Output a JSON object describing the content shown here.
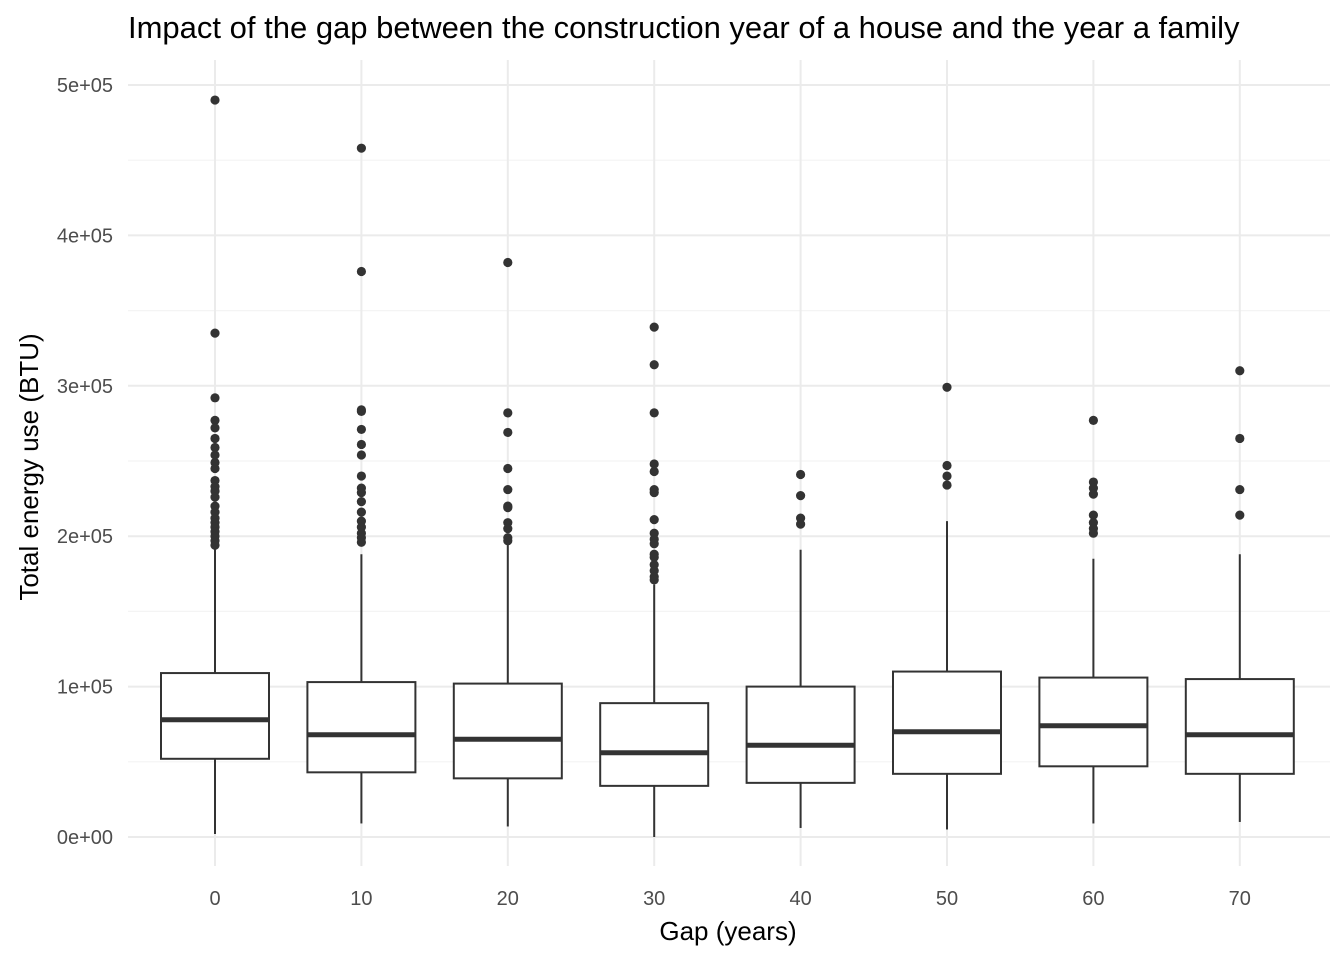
{
  "chart_data": {
    "type": "boxplot",
    "title": "Impact of the gap between the construction year of a house and the year a family",
    "xlabel": "Gap (years)",
    "ylabel": "Total energy use (BTU)",
    "ylim": [
      -50000,
      510000
    ],
    "yticks": [
      0,
      100000,
      200000,
      300000,
      400000,
      500000
    ],
    "ytick_labels": [
      "0e+00",
      "1e+05",
      "2e+05",
      "3e+05",
      "4e+05",
      "5e+05"
    ],
    "categories": [
      "0",
      "10",
      "20",
      "30",
      "40",
      "50",
      "60",
      "70"
    ],
    "grid": true,
    "colors": {
      "box": "#333333",
      "grid_major": "#ebebeb",
      "grid_minor": "#f4f4f4"
    },
    "boxes": [
      {
        "category": "0",
        "lower_whisker": 2000,
        "q1": 52000,
        "median": 78000,
        "q3": 109000,
        "upper_whisker": 193000,
        "outliers": [
          490000,
          335000,
          292000,
          277000,
          272000,
          265000,
          259000,
          254000,
          249000,
          245000,
          237000,
          233000,
          230000,
          226000,
          220000,
          216000,
          212000,
          209000,
          206000,
          203000,
          200000,
          197000,
          194000
        ]
      },
      {
        "category": "10",
        "lower_whisker": 9000,
        "q1": 43000,
        "median": 68000,
        "q3": 103000,
        "upper_whisker": 188000,
        "outliers": [
          458000,
          376000,
          284000,
          283000,
          271000,
          261000,
          254000,
          240000,
          232000,
          229000,
          223000,
          216000,
          210000,
          206000,
          202000,
          199000,
          196000
        ]
      },
      {
        "category": "20",
        "lower_whisker": 7000,
        "q1": 39000,
        "median": 65000,
        "q3": 102000,
        "upper_whisker": 195000,
        "outliers": [
          382000,
          282000,
          269000,
          245000,
          231000,
          220000,
          219000,
          209000,
          205000,
          199000,
          197000
        ]
      },
      {
        "category": "30",
        "lower_whisker": 0,
        "q1": 34000,
        "median": 56000,
        "q3": 89000,
        "upper_whisker": 168000,
        "outliers": [
          339000,
          314000,
          282000,
          248000,
          243000,
          231000,
          229000,
          211000,
          202000,
          198000,
          195000,
          188000,
          186000,
          181000,
          177000,
          173000,
          171000
        ]
      },
      {
        "category": "40",
        "lower_whisker": 6000,
        "q1": 36000,
        "median": 61000,
        "q3": 100000,
        "upper_whisker": 191000,
        "outliers": [
          241000,
          227000,
          212000,
          208000
        ]
      },
      {
        "category": "50",
        "lower_whisker": 5000,
        "q1": 42000,
        "median": 70000,
        "q3": 110000,
        "upper_whisker": 210000,
        "outliers": [
          299000,
          247000,
          240000,
          234000
        ]
      },
      {
        "category": "60",
        "lower_whisker": 9000,
        "q1": 47000,
        "median": 74000,
        "q3": 106000,
        "upper_whisker": 185000,
        "outliers": [
          277000,
          236000,
          232000,
          228000,
          214000,
          209000,
          205000,
          202000
        ]
      },
      {
        "category": "70",
        "lower_whisker": 10000,
        "q1": 42000,
        "median": 68000,
        "q3": 105000,
        "upper_whisker": 188000,
        "outliers": [
          310000,
          265000,
          231000,
          214000
        ]
      }
    ]
  }
}
